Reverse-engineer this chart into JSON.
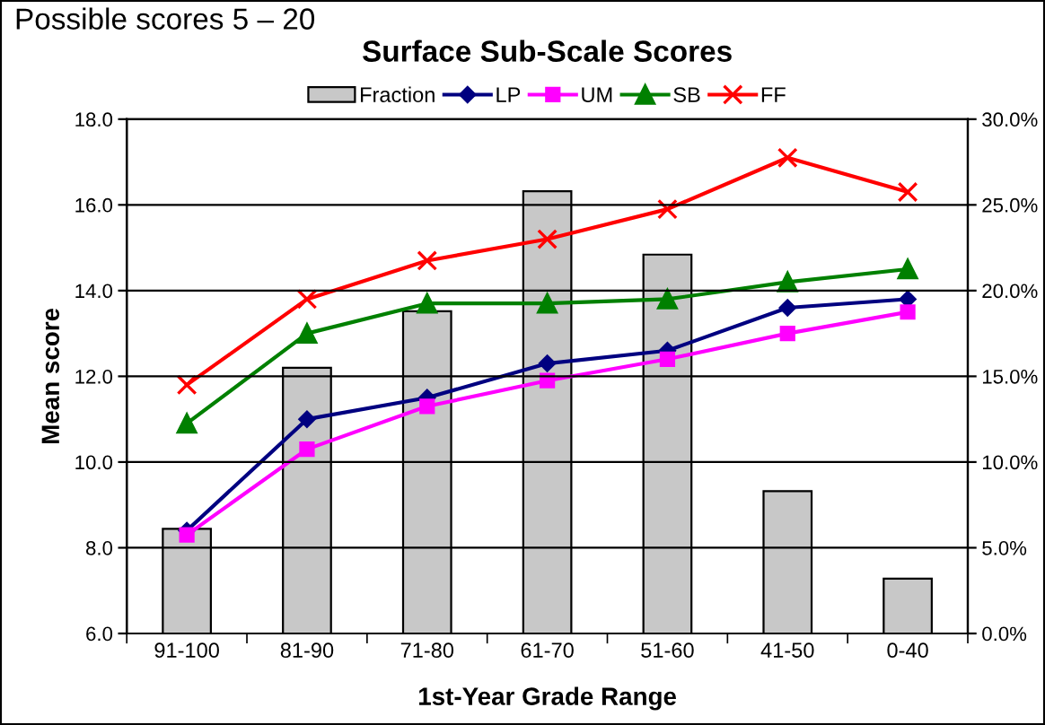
{
  "chart_data": {
    "type": "bar",
    "title": "Surface Sub-Scale Scores",
    "xlabel": "1st-Year Grade Range",
    "ylabel": "Mean score",
    "annotations": [
      "Possible scores 5 – 20"
    ],
    "categories": [
      "91-100",
      "81-90",
      "71-80",
      "61-70",
      "51-60",
      "41-50",
      "0-40"
    ],
    "series": [
      {
        "name": "Fraction",
        "axis": "y2",
        "color": "#c8c8c8",
        "values": [
          6.1,
          15.5,
          18.8,
          25.8,
          22.1,
          8.3,
          3.2
        ]
      },
      {
        "name": "LP",
        "type": "line",
        "marker": "diamond",
        "color": "#000080",
        "values": [
          8.4,
          11.0,
          11.5,
          12.3,
          12.6,
          13.6,
          13.8
        ]
      },
      {
        "name": "UM",
        "type": "line",
        "marker": "square",
        "color": "#ff00ff",
        "values": [
          8.3,
          10.3,
          11.3,
          11.9,
          12.4,
          13.0,
          13.5
        ]
      },
      {
        "name": "SB",
        "type": "line",
        "marker": "triangle",
        "color": "#008000",
        "values": [
          10.9,
          13.0,
          13.7,
          13.7,
          13.8,
          14.2,
          14.5
        ]
      },
      {
        "name": "FF",
        "type": "line",
        "marker": "cross",
        "color": "#ff0000",
        "values": [
          11.8,
          13.8,
          14.7,
          15.2,
          15.9,
          17.1,
          16.3
        ]
      }
    ],
    "ylim": [
      6,
      18
    ],
    "yticks": [
      {
        "value": 6,
        "label": "6.0"
      },
      {
        "value": 8,
        "label": "8.0"
      },
      {
        "value": 10,
        "label": "10.0"
      },
      {
        "value": 12,
        "label": "12.0"
      },
      {
        "value": 14,
        "label": "14.0"
      },
      {
        "value": 16,
        "label": "16.0"
      },
      {
        "value": 18,
        "label": "18.0"
      }
    ],
    "y2lim": [
      0,
      30
    ],
    "y2ticks": [
      {
        "value": 0,
        "label": "0.0%"
      },
      {
        "value": 5,
        "label": "5.0%"
      },
      {
        "value": 10,
        "label": "10.0%"
      },
      {
        "value": 15,
        "label": "15.0%"
      },
      {
        "value": 20,
        "label": "20.0%"
      },
      {
        "value": 25,
        "label": "25.0%"
      },
      {
        "value": 30,
        "label": "30.0%"
      }
    ],
    "grid": "y",
    "legend": "top"
  }
}
